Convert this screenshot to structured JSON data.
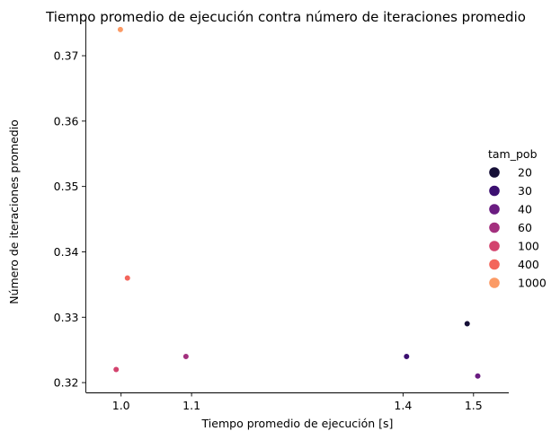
{
  "chart_data": {
    "type": "scatter",
    "title": "Tiempo promedio de ejecución contra número de iteraciones promedio",
    "xlabel": "Tiempo promedio de ejecución [s]",
    "ylabel": "Número de iteraciones promedio",
    "xlim": [
      0.95,
      1.55
    ],
    "ylim": [
      0.3185,
      0.3755
    ],
    "x_ticks": [
      {
        "value": 1.0,
        "label": "1.0"
      },
      {
        "value": 1.1,
        "label": "1.1"
      },
      {
        "value": 1.4,
        "label": "1.4"
      },
      {
        "value": 1.5,
        "label": "1.5"
      }
    ],
    "y_ticks": [
      {
        "value": 0.32,
        "label": "0.32"
      },
      {
        "value": 0.33,
        "label": "0.33"
      },
      {
        "value": 0.34,
        "label": "0.34"
      },
      {
        "value": 0.35,
        "label": "0.35"
      },
      {
        "value": 0.36,
        "label": "0.36"
      },
      {
        "value": 0.37,
        "label": "0.37"
      }
    ],
    "grid": false,
    "legend": {
      "title": "tam_pob",
      "position": "right",
      "entries": [
        {
          "label": "20",
          "color": "#150f37"
        },
        {
          "label": "30",
          "color": "#3b0f70"
        },
        {
          "label": "40",
          "color": "#6a1c81"
        },
        {
          "label": "60",
          "color": "#a3307e"
        },
        {
          "label": "100",
          "color": "#d3436e"
        },
        {
          "label": "400",
          "color": "#f3665c"
        },
        {
          "label": "1000",
          "color": "#fb9a65"
        }
      ]
    },
    "points": [
      {
        "x": 1.491,
        "y": 0.329,
        "tam_pob": "20",
        "color": "#150f37"
      },
      {
        "x": 1.405,
        "y": 0.324,
        "tam_pob": "30",
        "color": "#3b0f70"
      },
      {
        "x": 1.506,
        "y": 0.321,
        "tam_pob": "40",
        "color": "#6a1c81"
      },
      {
        "x": 1.092,
        "y": 0.324,
        "tam_pob": "60",
        "color": "#a3307e"
      },
      {
        "x": 0.993,
        "y": 0.322,
        "tam_pob": "100",
        "color": "#d3436e"
      },
      {
        "x": 1.009,
        "y": 0.336,
        "tam_pob": "400",
        "color": "#f3665c"
      },
      {
        "x": 0.999,
        "y": 0.374,
        "tam_pob": "1000",
        "color": "#fb9a65"
      }
    ]
  }
}
